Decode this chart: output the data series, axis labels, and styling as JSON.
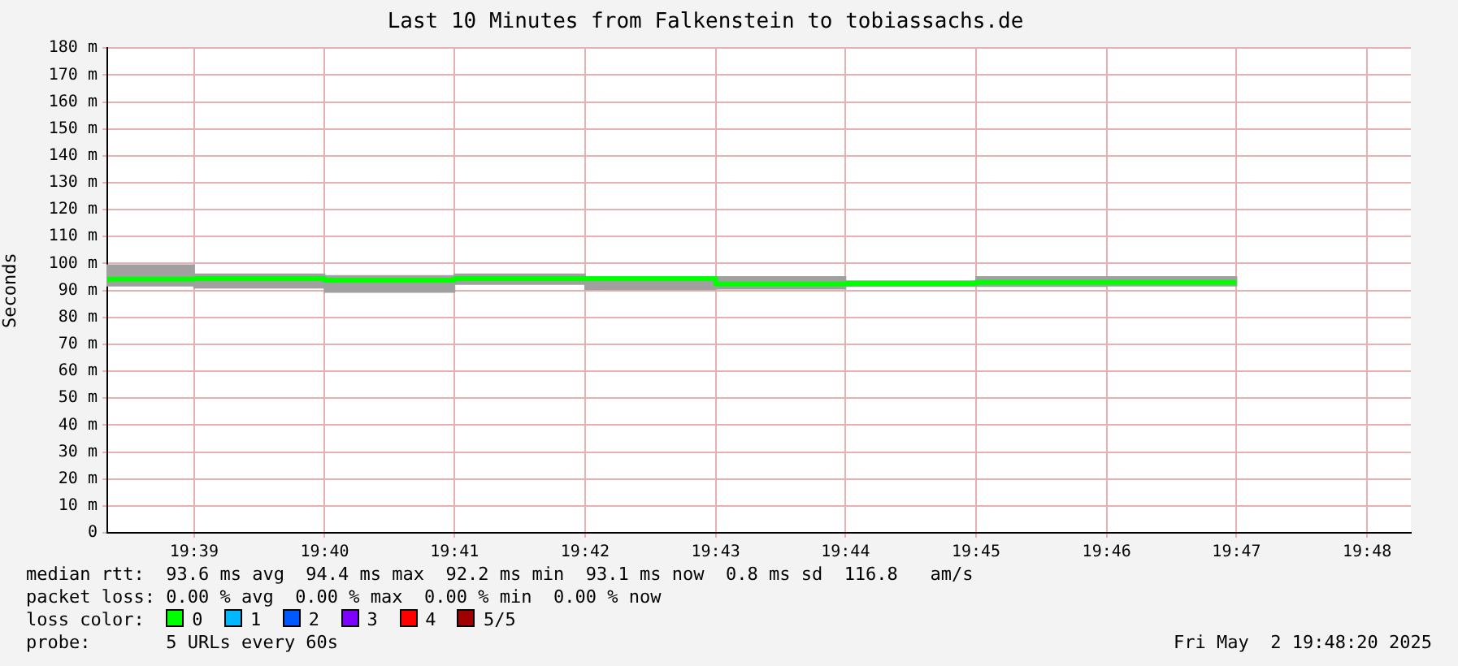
{
  "chart_data": {
    "type": "step",
    "title": "Last 10 Minutes from Falkenstein to tobiassachs.de",
    "ylabel": "Seconds",
    "x": [
      19.6389,
      19.65,
      19.6667,
      19.6833,
      19.7,
      19.7167,
      19.7333,
      19.75,
      19.7667,
      19.7833
    ],
    "series": [
      {
        "color": "#00ff00",
        "values": [
          93.0,
          94.2,
          94.4,
          93.8,
          94.4,
          94.4,
          92.4,
          92.6,
          93.0,
          93.0
        ],
        "lower": [
          91.8,
          91.0,
          89.4,
          92.4,
          90.4,
          90.6,
          91.6,
          91.6,
          91.8,
          91.8
        ],
        "upper": [
          99.4,
          96.0,
          95.4,
          96.0,
          95.0,
          95.0,
          93.4,
          95.0,
          95.0,
          95.0
        ]
      }
    ],
    "xlim": [
      19.6389,
      19.8056
    ],
    "xticks": [
      {
        "value": 19.65,
        "label": "19:39"
      },
      {
        "value": 19.6667,
        "label": "19:40"
      },
      {
        "value": 19.6833,
        "label": "19:41"
      },
      {
        "value": 19.7,
        "label": "19:42"
      },
      {
        "value": 19.7167,
        "label": "19:43"
      },
      {
        "value": 19.7333,
        "label": "19:44"
      },
      {
        "value": 19.75,
        "label": "19:45"
      },
      {
        "value": 19.7667,
        "label": "19:46"
      },
      {
        "value": 19.7833,
        "label": "19:47"
      },
      {
        "value": 19.8,
        "label": "19:48"
      }
    ],
    "ylim": [
      0,
      180
    ],
    "yticks": [
      0,
      {
        "value": 10,
        "label": "10 m"
      },
      {
        "value": 20,
        "label": "20 m"
      },
      {
        "value": 30,
        "label": "30 m"
      },
      {
        "value": 40,
        "label": "40 m"
      },
      {
        "value": 50,
        "label": "50 m"
      },
      {
        "value": 60,
        "label": "60 m"
      },
      {
        "value": 70,
        "label": "70 m"
      },
      {
        "value": 80,
        "label": "80 m"
      },
      {
        "value": 90,
        "label": "90 m"
      },
      {
        "value": 100,
        "label": "100 m"
      },
      {
        "value": 110,
        "label": "110 m"
      },
      {
        "value": 120,
        "label": "120 m"
      },
      {
        "value": 130,
        "label": "130 m"
      },
      {
        "value": 140,
        "label": "140 m"
      },
      {
        "value": 150,
        "label": "150 m"
      },
      {
        "value": 160,
        "label": "160 m"
      },
      {
        "value": 170,
        "label": "170 m"
      },
      {
        "value": 180,
        "label": "180 m"
      }
    ],
    "grid": true,
    "marker": "none",
    "line_style": "solid",
    "annotations": [
      "median rtt:  93.6 ms avg  94.4 ms max  92.2 ms min  93.1 ms now  0.8 ms sd  116.8   am/s",
      "packet loss: 0.00 % avg  0.00 % max  0.00 % min  0.00 % now",
      "loss color:",
      "0",
      "1",
      "2",
      "3",
      "4",
      "5/5",
      "probe:       5 URLs every 60s",
      "Fri May  2 19:48:20 2025"
    ]
  }
}
